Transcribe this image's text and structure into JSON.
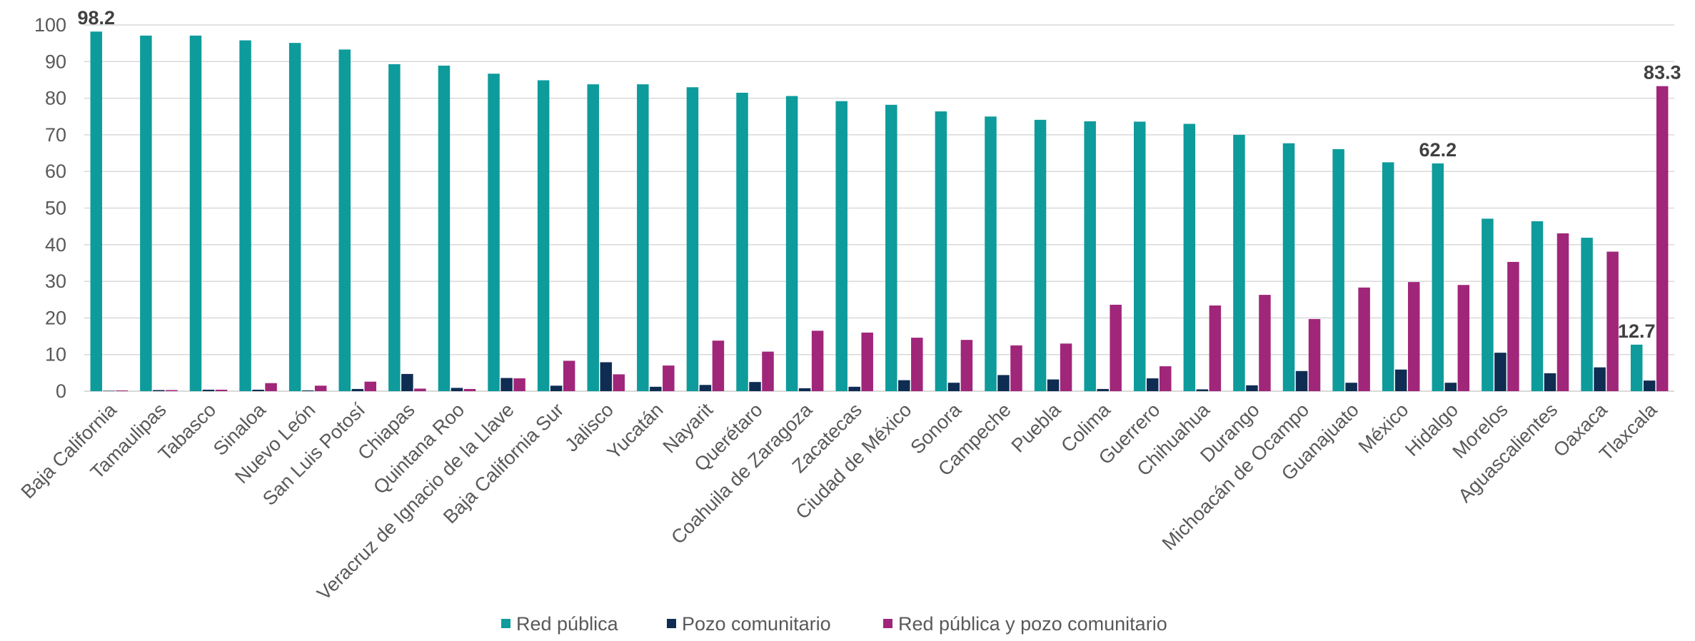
{
  "chart_data": {
    "type": "bar",
    "title": "",
    "xlabel": "",
    "ylabel": "",
    "ylim": [
      0,
      100
    ],
    "yticks": [
      0,
      10,
      20,
      30,
      40,
      50,
      60,
      70,
      80,
      90,
      100
    ],
    "grid": true,
    "legend_position": "bottom",
    "categories": [
      "Baja California",
      "Tamaulipas",
      "Tabasco",
      "Sinaloa",
      "Nuevo León",
      "San Luis Potosí",
      "Chiapas",
      "Quintana Roo",
      "Veracruz de Ignacio de la Llave",
      "Baja California Sur",
      "Jalisco",
      "Yucatán",
      "Nayarit",
      "Querétaro",
      "Coahuila de Zaragoza",
      "Zacatecas",
      "Ciudad de México",
      "Sonora",
      "Campeche",
      "Puebla",
      "Colima",
      "Guerrero",
      "Chihuahua",
      "Durango",
      "Michoacán de Ocampo",
      "Guanajuato",
      "México",
      "Hidalgo",
      "Morelos",
      "Aguascalientes",
      "Oaxaca",
      "Tlaxcala"
    ],
    "series": [
      {
        "name": "Red pública",
        "color": "#0e9b9c",
        "values": [
          98.2,
          97.1,
          97.1,
          95.8,
          95.1,
          93.3,
          89.3,
          88.9,
          86.7,
          84.9,
          83.8,
          83.8,
          83.0,
          81.5,
          80.6,
          79.2,
          78.2,
          76.4,
          75.0,
          74.1,
          73.7,
          73.6,
          73.0,
          70.0,
          67.7,
          66.1,
          62.5,
          62.2,
          47.1,
          46.4,
          41.9,
          12.7
        ]
      },
      {
        "name": "Pozo comunitario",
        "color": "#0f2d52",
        "values": [
          0.1,
          0.3,
          0.4,
          0.4,
          0.2,
          0.6,
          4.7,
          0.9,
          3.6,
          1.5,
          7.9,
          1.2,
          1.7,
          2.5,
          0.8,
          1.2,
          3.0,
          2.3,
          4.4,
          3.2,
          0.6,
          3.5,
          0.5,
          1.6,
          5.5,
          2.3,
          5.9,
          2.3,
          10.5,
          4.9,
          6.5,
          2.9
        ]
      },
      {
        "name": "Red pública y pozo comunitario",
        "color": "#a0267a",
        "values": [
          0.2,
          0.3,
          0.4,
          2.2,
          1.5,
          2.6,
          0.7,
          0.6,
          3.5,
          8.3,
          4.6,
          7.0,
          13.8,
          10.8,
          16.5,
          16.0,
          14.6,
          14.0,
          12.5,
          13.0,
          23.6,
          6.8,
          23.4,
          26.3,
          19.7,
          28.3,
          29.8,
          29.0,
          35.3,
          43.1,
          38.1,
          83.3
        ]
      }
    ],
    "annotations": [
      {
        "text": "98.2",
        "category": "Baja California",
        "series": "Red pública"
      },
      {
        "text": "62.2",
        "category": "Hidalgo",
        "series": "Red pública"
      },
      {
        "text": "12.7",
        "category": "Tlaxcala",
        "series": "Red pública"
      },
      {
        "text": "83.3",
        "category": "Tlaxcala",
        "series": "Red pública y pozo comunitario"
      }
    ]
  }
}
